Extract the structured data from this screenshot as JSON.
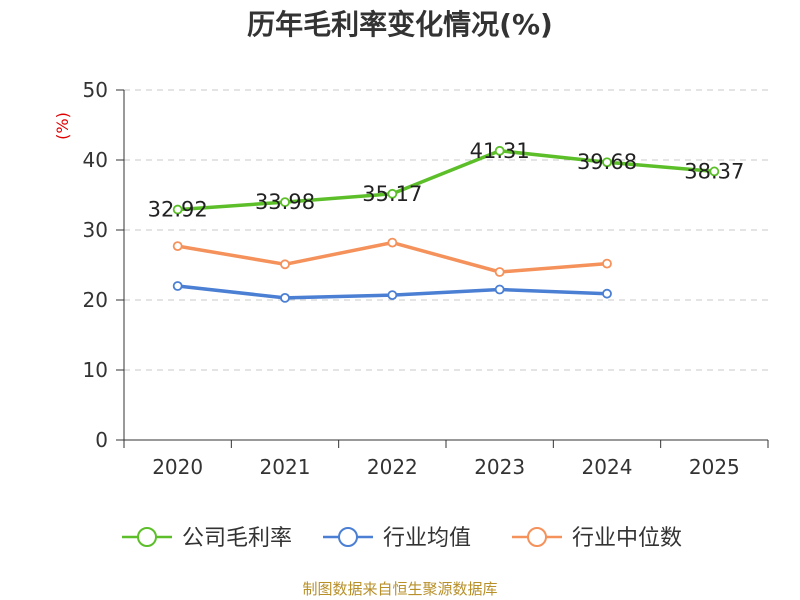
{
  "chart_data": {
    "type": "line",
    "title": "历年毛利率变化情况(%)",
    "ylabel": "(%)",
    "xlabel": "",
    "categories": [
      "2020",
      "2021",
      "2022",
      "2023",
      "2024",
      "2025"
    ],
    "ylim": [
      0,
      50
    ],
    "yticks": [
      0,
      10,
      20,
      30,
      40,
      50
    ],
    "grid": true,
    "legend_position": "bottom",
    "series": [
      {
        "name": "公司毛利率",
        "color": "#5cbf2a",
        "values": [
          32.92,
          33.98,
          35.17,
          41.31,
          39.68,
          38.37
        ],
        "data_labels": [
          "32.92",
          "33.98",
          "35.17",
          "41.31",
          "39.68",
          "38.37"
        ]
      },
      {
        "name": "行业均值",
        "color": "#4a7fd4",
        "values": [
          22.0,
          20.3,
          20.7,
          21.5,
          20.9,
          null
        ]
      },
      {
        "name": "行业中位数",
        "color": "#f5915a",
        "values": [
          27.7,
          25.1,
          28.2,
          24.0,
          25.2,
          null
        ]
      }
    ],
    "source": "制图数据来自恒生聚源数据库"
  }
}
